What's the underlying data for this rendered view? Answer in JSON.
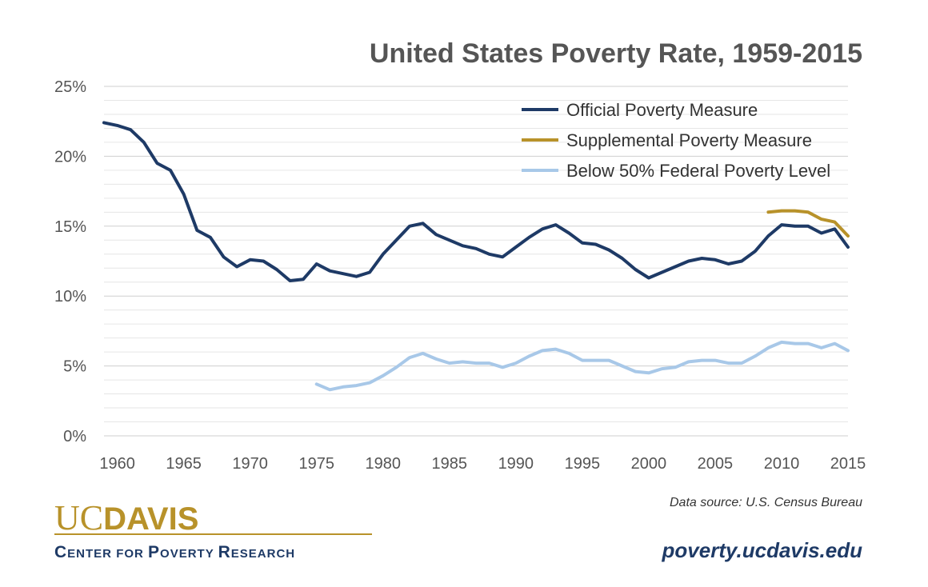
{
  "chart_data": {
    "type": "line",
    "title": "United States Poverty Rate, 1959-2015",
    "xlabel": "",
    "ylabel": "",
    "xlim": [
      1959,
      2015
    ],
    "ylim": [
      0,
      25
    ],
    "xticks": [
      1960,
      1965,
      1970,
      1975,
      1980,
      1985,
      1990,
      1995,
      2000,
      2005,
      2010,
      2015
    ],
    "yticks": [
      0,
      5,
      10,
      15,
      20,
      25
    ],
    "ytick_labels": [
      "0%",
      "5%",
      "10%",
      "15%",
      "20%",
      "25%"
    ],
    "grid": true,
    "legend_position": "top-right",
    "series": [
      {
        "name": "Official Poverty Measure",
        "color": "#1e3a66",
        "x": [
          1959,
          1960,
          1961,
          1962,
          1963,
          1964,
          1965,
          1966,
          1967,
          1968,
          1969,
          1970,
          1971,
          1972,
          1973,
          1974,
          1975,
          1976,
          1977,
          1978,
          1979,
          1980,
          1981,
          1982,
          1983,
          1984,
          1985,
          1986,
          1987,
          1988,
          1989,
          1990,
          1991,
          1992,
          1993,
          1994,
          1995,
          1996,
          1997,
          1998,
          1999,
          2000,
          2001,
          2002,
          2003,
          2004,
          2005,
          2006,
          2007,
          2008,
          2009,
          2010,
          2011,
          2012,
          2013,
          2014,
          2015
        ],
        "values": [
          22.4,
          22.2,
          21.9,
          21.0,
          19.5,
          19.0,
          17.3,
          14.7,
          14.2,
          12.8,
          12.1,
          12.6,
          12.5,
          11.9,
          11.1,
          11.2,
          12.3,
          11.8,
          11.6,
          11.4,
          11.7,
          13.0,
          14.0,
          15.0,
          15.2,
          14.4,
          14.0,
          13.6,
          13.4,
          13.0,
          12.8,
          13.5,
          14.2,
          14.8,
          15.1,
          14.5,
          13.8,
          13.7,
          13.3,
          12.7,
          11.9,
          11.3,
          11.7,
          12.1,
          12.5,
          12.7,
          12.6,
          12.3,
          12.5,
          13.2,
          14.3,
          15.1,
          15.0,
          15.0,
          14.5,
          14.8,
          13.5
        ]
      },
      {
        "name": "Supplemental Poverty Measure",
        "color": "#b8922a",
        "x": [
          2009,
          2010,
          2011,
          2012,
          2013,
          2014,
          2015
        ],
        "values": [
          16.0,
          16.1,
          16.1,
          16.0,
          15.5,
          15.3,
          14.3
        ]
      },
      {
        "name": "Below 50% Federal Poverty Level",
        "color": "#a8c8e8",
        "x": [
          1975,
          1976,
          1977,
          1978,
          1979,
          1980,
          1981,
          1982,
          1983,
          1984,
          1985,
          1986,
          1987,
          1988,
          1989,
          1990,
          1991,
          1992,
          1993,
          1994,
          1995,
          1996,
          1997,
          1998,
          1999,
          2000,
          2001,
          2002,
          2003,
          2004,
          2005,
          2006,
          2007,
          2008,
          2009,
          2010,
          2011,
          2012,
          2013,
          2014,
          2015
        ],
        "values": [
          3.7,
          3.3,
          3.5,
          3.6,
          3.8,
          4.3,
          4.9,
          5.6,
          5.9,
          5.5,
          5.2,
          5.3,
          5.2,
          5.2,
          4.9,
          5.2,
          5.7,
          6.1,
          6.2,
          5.9,
          5.4,
          5.4,
          5.4,
          5.0,
          4.6,
          4.5,
          4.8,
          4.9,
          5.3,
          5.4,
          5.4,
          5.2,
          5.2,
          5.7,
          6.3,
          6.7,
          6.6,
          6.6,
          6.3,
          6.6,
          6.1
        ]
      }
    ]
  },
  "source_note": "Data source: U.S. Census Bureau",
  "logo": {
    "uc": "UC",
    "davis": "DAVIS",
    "line2": [
      {
        "text": "C",
        "size": "big"
      },
      {
        "text": "ENTER ",
        "size": "small"
      },
      {
        "text": "FOR ",
        "size": "small"
      },
      {
        "text": "P",
        "size": "big"
      },
      {
        "text": "OVERTY ",
        "size": "small"
      },
      {
        "text": "R",
        "size": "big"
      },
      {
        "text": "ESEARCH",
        "size": "small"
      }
    ],
    "line2_text": "CENTER FOR POVERTY RESEARCH"
  },
  "website": "poverty.ucdavis.edu"
}
